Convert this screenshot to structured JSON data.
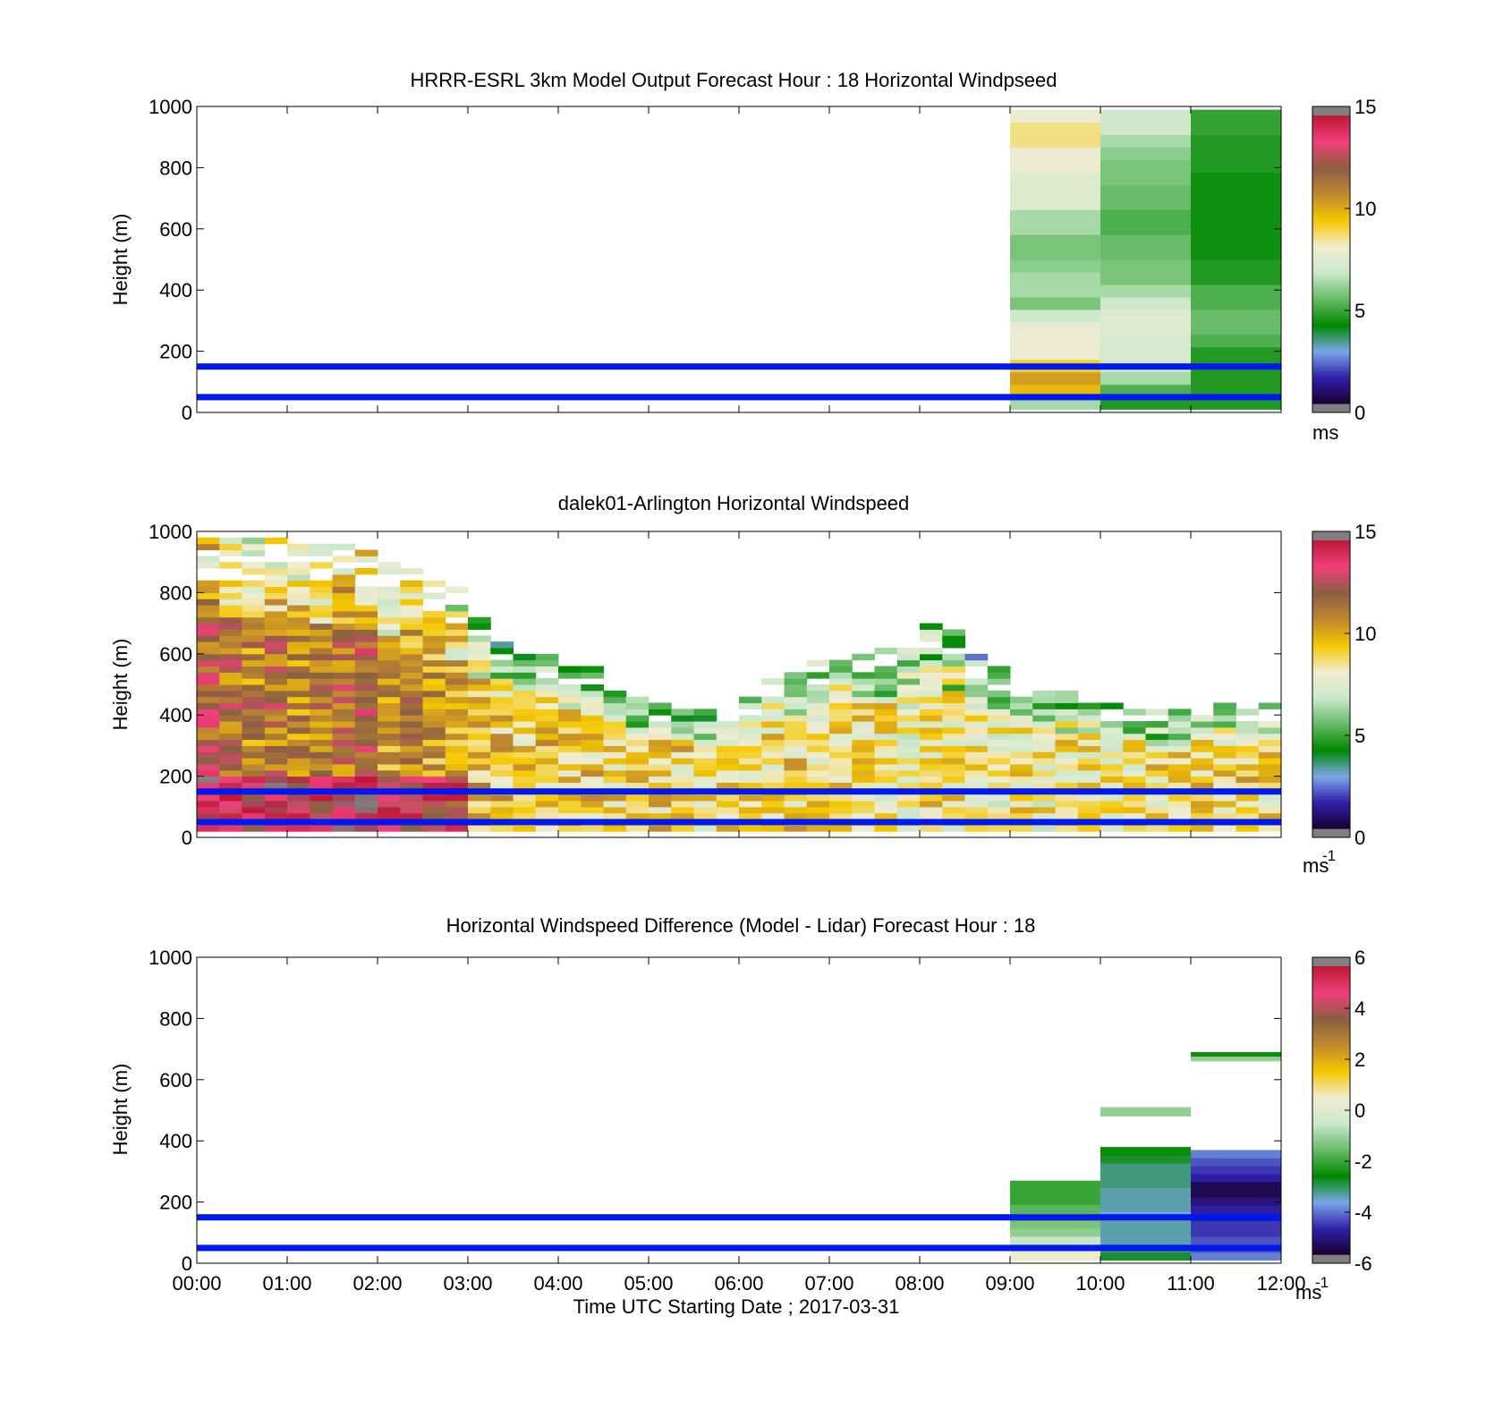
{
  "figure": {
    "x_title": "Time UTC  Starting Date ; 2017-03-31"
  },
  "colors": {
    "reference_line": "#0018f0",
    "speed_colormap": [
      "#808080",
      "#1a0030",
      "#3020a8",
      "#7aa8e8",
      "#008800",
      "#66bb66",
      "#cce8cc",
      "#f0ecd0",
      "#f5c800",
      "#c08830",
      "#8a6040",
      "#f0407a",
      "#c01838",
      "#808080"
    ],
    "diff_colormap": [
      "#808080",
      "#1a0030",
      "#3020a8",
      "#7aa8e8",
      "#008800",
      "#66bb66",
      "#cce8cc",
      "#f0ecd0",
      "#f5c800",
      "#c08830",
      "#8a6040",
      "#f0407a",
      "#c01838",
      "#808080"
    ]
  },
  "chart_data": [
    {
      "type": "heatmap",
      "title": "HRRR-ESRL 3km Model Output   Forecast Hour : 18 Horizontal Windpseed",
      "ylabel": "Height (m)",
      "colorbar_unit": "ms",
      "colorbar_sup": "",
      "ylim": [
        0,
        1000
      ],
      "xlim": [
        0,
        12
      ],
      "yticks": [
        "0",
        "200",
        "400",
        "600",
        "800",
        "1000"
      ],
      "colorbar_ticks": [
        "0",
        "5",
        "10",
        "15"
      ],
      "colorbar_range": [
        0,
        15
      ],
      "reference_lines_m": [
        150,
        50
      ],
      "model_columns": [
        {
          "x_start": 9,
          "x_end": 10,
          "speeds": [
            6.5,
            9.5,
            10,
            9,
            8,
            8,
            7.8,
            7,
            6,
            6.5,
            6.5,
            6.2,
            6,
            6,
            6.5,
            6.5,
            7.5,
            7.5,
            7.5,
            8,
            8,
            8.5,
            8.5,
            8
          ]
        },
        {
          "x_start": 10,
          "x_end": 11,
          "speeds": [
            5,
            5.5,
            6.5,
            7,
            7.2,
            7.2,
            7.5,
            7.5,
            7,
            6.5,
            6,
            6,
            5.8,
            5.8,
            5.5,
            5.5,
            5.8,
            5.8,
            6,
            6,
            6.2,
            6.5,
            7,
            7
          ]
        },
        {
          "x_start": 11,
          "x_end": 12,
          "speeds": [
            5,
            5,
            5,
            5,
            5,
            5.5,
            5.8,
            5.8,
            5.5,
            5.5,
            5,
            5,
            4.8,
            4.8,
            4.8,
            4.8,
            4.8,
            4.8,
            4.8,
            5,
            5,
            5,
            5.2,
            5.2
          ]
        }
      ]
    },
    {
      "type": "heatmap",
      "title": "dalek01-Arlington  Horizontal Windspeed",
      "ylabel": "Height (m)",
      "colorbar_unit": "ms",
      "colorbar_sup": "-1",
      "ylim": [
        0,
        1000
      ],
      "xlim": [
        0,
        12
      ],
      "yticks": [
        "0",
        "200",
        "400",
        "600",
        "800",
        "1000"
      ],
      "colorbar_ticks": [
        "0",
        "5",
        "10",
        "15"
      ],
      "colorbar_range": [
        0,
        15
      ],
      "reference_lines_m": [
        150,
        50
      ],
      "lidar_time_bin_h": 0.25,
      "lidar_range_gate_m": 20,
      "lidar_profile_top_m": [
        980,
        980,
        980,
        980,
        980,
        970,
        960,
        930,
        900,
        880,
        850,
        820,
        720,
        650,
        620,
        600,
        580,
        560,
        520,
        460,
        440,
        430,
        420,
        440,
        470,
        520,
        560,
        580,
        600,
        620,
        640,
        660,
        700,
        680,
        600,
        560,
        520,
        500,
        480,
        460,
        440,
        430,
        420,
        420,
        430,
        440,
        440,
        440
      ],
      "lidar_profile_speed_ms": [
        11.5,
        11,
        10.5,
        11,
        10.5,
        10.5,
        11,
        11.5,
        10,
        10.5,
        10,
        9.8,
        9.5,
        9.2,
        9,
        9.2,
        9,
        9,
        8.8,
        8.8,
        9,
        8.8,
        8.5,
        8.6,
        8.6,
        8.6,
        8.8,
        8.6,
        8.8,
        8.5,
        8.4,
        8.2,
        8.6,
        8.4,
        8.2,
        8.2,
        8.4,
        8.2,
        8.5,
        8.3,
        8.4,
        8.3,
        8.6,
        8.5,
        8.8,
        8.6,
        8.8,
        8.6
      ]
    },
    {
      "type": "heatmap",
      "title": "Horizontal Windspeed Difference (Model - Lidar) Forecast Hour : 18",
      "ylabel": "Height (m)",
      "colorbar_unit": "ms",
      "colorbar_sup": "-1",
      "ylim": [
        0,
        1000
      ],
      "xlim": [
        0,
        12
      ],
      "yticks": [
        "0",
        "200",
        "400",
        "600",
        "800",
        "1000"
      ],
      "xticks": [
        "00:00",
        "01:00",
        "02:00",
        "03:00",
        "04:00",
        "05:00",
        "06:00",
        "07:00",
        "08:00",
        "09:00",
        "10:00",
        "11:00",
        "12:00"
      ],
      "colorbar_ticks": [
        "-6",
        "-4",
        "-2",
        "0",
        "2",
        "4",
        "6"
      ],
      "colorbar_range": [
        -6,
        6
      ],
      "reference_lines_m": [
        150,
        50
      ],
      "diff_columns": [
        {
          "x_start": 9,
          "x_end": 10,
          "y_top_m": 270,
          "diff": [
            0.5,
            0.2,
            -0.5,
            -1,
            -1.2,
            -1.5,
            -1.5,
            -1.8,
            -1.8,
            -1.8
          ]
        },
        {
          "x_start": 10,
          "x_end": 11,
          "y_top_m": 380,
          "diff": [
            -2.5,
            -2.8,
            -3,
            -3,
            -3,
            -3.2,
            -3,
            -3,
            -3,
            -2.8,
            -2.8,
            -2.8,
            -2.5,
            -2.2
          ]
        },
        {
          "x_start": 11,
          "x_end": 12,
          "y_top_m": 370,
          "diff": [
            -3.5,
            -3.8,
            -3.8,
            -4,
            -4,
            -4.2,
            -4.2,
            -4.5,
            -4.8,
            -4.8,
            -4.2,
            -4,
            -3.8,
            -3.5
          ]
        }
      ],
      "diff_patches": [
        {
          "x_start": 10,
          "x_end": 11,
          "y0_m": 480,
          "y1_m": 510,
          "diff": -1
        },
        {
          "x_start": 11,
          "x_end": 12,
          "y0_m": 660,
          "y1_m": 675,
          "diff": -1
        },
        {
          "x_start": 11,
          "x_end": 12,
          "y0_m": 675,
          "y1_m": 690,
          "diff": -2.2
        }
      ]
    }
  ]
}
